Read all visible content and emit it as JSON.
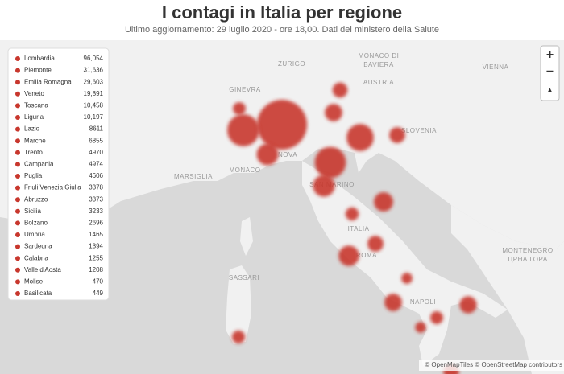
{
  "header": {
    "title": "I contagi in Italia per regione",
    "subtitle": "Ultimo aggiornamento: 29 luglio 2020 - ore 18,00. Dati del ministero della Salute"
  },
  "regions": {
    "names": [
      "Lombardia",
      "Piemonte",
      "Emilia Romagna",
      "Veneto",
      "Toscana",
      "Liguria",
      "Lazio",
      "Marche",
      "Trento",
      "Campania",
      "Puglia",
      "Friuli Venezia Giulia",
      "Abruzzo",
      "Sicilia",
      "Bolzano",
      "Umbria",
      "Sardegna",
      "Calabria",
      "Valle d'Aosta",
      "Molise",
      "Basilicata"
    ],
    "values": [
      96054,
      31636,
      29603,
      19891,
      10458,
      10197,
      8611,
      6855,
      4970,
      4974,
      4606,
      3378,
      3373,
      3233,
      2696,
      1465,
      1394,
      1255,
      1208,
      470,
      449
    ],
    "value_labels": [
      "96,054",
      "31,636",
      "29,603",
      "19,891",
      "10,458",
      "10,197",
      "8611",
      "6855",
      "4970",
      "4974",
      "4606",
      "3378",
      "3373",
      "3233",
      "2696",
      "1465",
      "1394",
      "1255",
      "1208",
      "470",
      "449"
    ],
    "color": "#c8372d"
  },
  "map_labels": [
    "ZURIGO",
    "MONACO DI",
    "BAVIERA",
    "VIENNA",
    "AUSTRIA",
    "SLOVENIA",
    "GINEVRA",
    "MONACO",
    "SAN MARINO",
    "ITALIA",
    "ROMA",
    "NAPOLI",
    "SASSARI",
    "MONTENEGRO",
    "ЦРНА ГОРА",
    "MARSIGLIA",
    "NOVA"
  ],
  "controls": {
    "zoom_in": "+",
    "zoom_out": "−",
    "reset": "▲"
  },
  "attribution": "© OpenMapTiles © OpenStreetMap contributors"
}
